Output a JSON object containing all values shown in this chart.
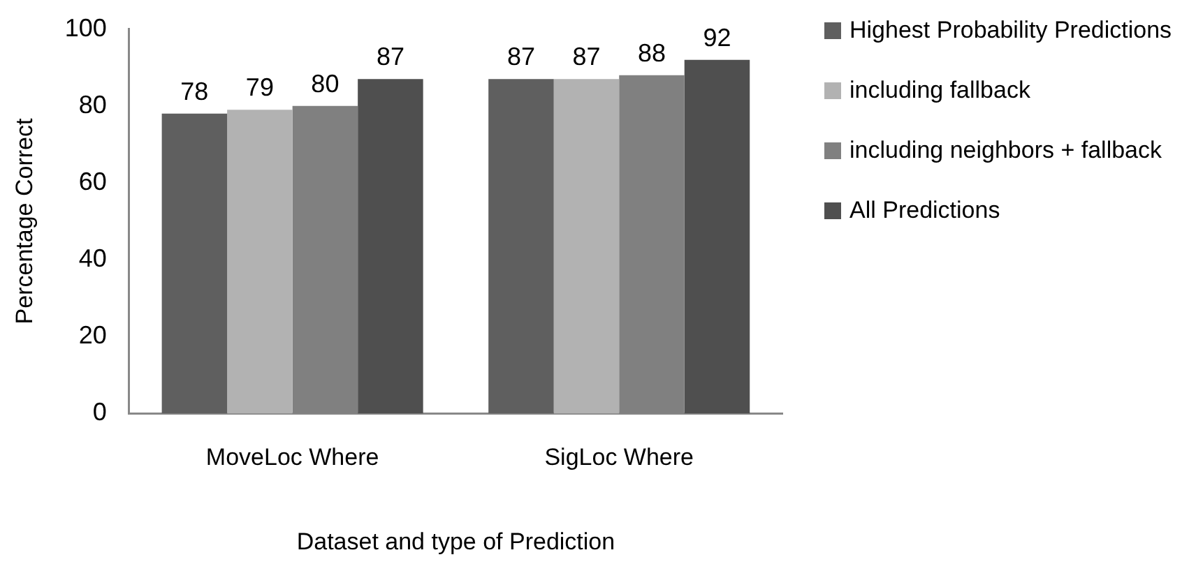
{
  "chart_data": {
    "type": "bar",
    "xlabel": "Dataset and type of Prediction",
    "ylabel": "Percentage Correct",
    "categories": [
      "MoveLoc Where",
      "SigLoc Where"
    ],
    "series": [
      {
        "name": "Highest Probability Predictions",
        "color": "#5f5f5f",
        "values": [
          78,
          87
        ]
      },
      {
        "name": "including fallback",
        "color": "#b2b2b2",
        "values": [
          79,
          87
        ]
      },
      {
        "name": "including neighbors + fallback",
        "color": "#808080",
        "values": [
          80,
          88
        ]
      },
      {
        "name": "All Predictions",
        "color": "#4f4f4f",
        "values": [
          87,
          92
        ]
      }
    ],
    "ylim": [
      0,
      100
    ],
    "yticks": [
      0,
      20,
      40,
      60,
      80,
      100
    ],
    "data_labels": true,
    "grid": false,
    "legend": "right"
  }
}
